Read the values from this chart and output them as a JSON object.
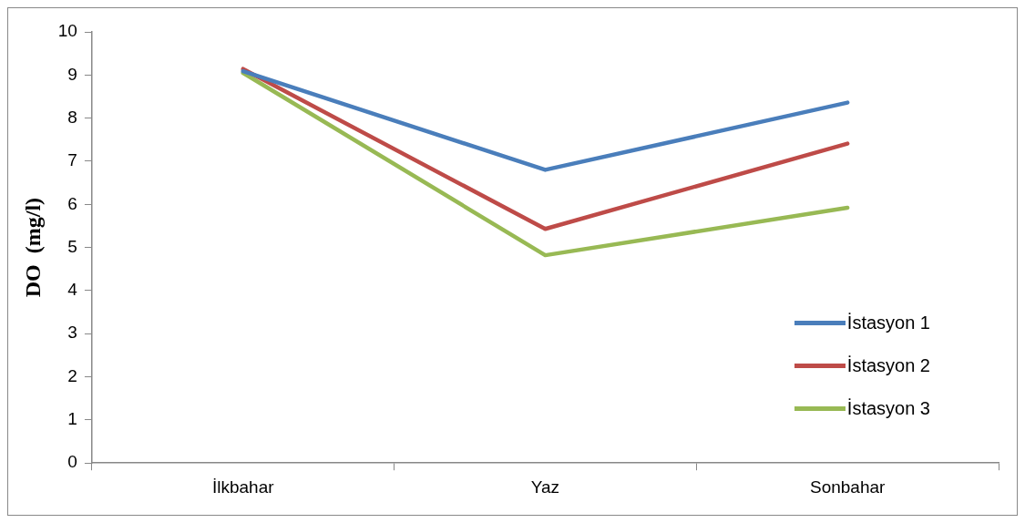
{
  "chart_data": {
    "type": "line",
    "ylabel": "DO  (mg/l)",
    "categories": [
      "İlkbahar",
      "Yaz",
      "Sonbahar"
    ],
    "series": [
      {
        "name": "İstasyon 1",
        "color": "#4a7ebb",
        "values": [
          9.09,
          6.8,
          8.36
        ]
      },
      {
        "name": "İstasyon 2",
        "color": "#be4b48",
        "values": [
          9.14,
          5.43,
          7.41
        ]
      },
      {
        "name": "İstasyon 3",
        "color": "#98b954",
        "values": [
          9.05,
          4.82,
          5.92
        ]
      }
    ],
    "ylim": [
      0,
      10
    ],
    "yticks": [
      0,
      1,
      2,
      3,
      4,
      5,
      6,
      7,
      8,
      9,
      10
    ],
    "grid": false,
    "legend": "right",
    "marker": "none",
    "line_style": "solid"
  }
}
